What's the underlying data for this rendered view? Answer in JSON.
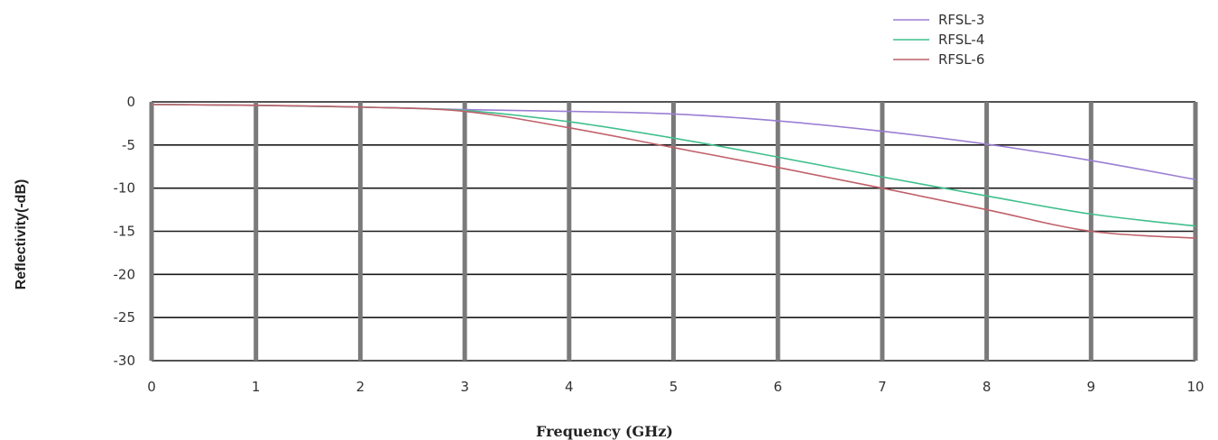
{
  "chart_data": {
    "type": "line",
    "title": "",
    "xlabel": "Frequency (GHz)",
    "ylabel": "Reflectivity(-dB)",
    "xlim": [
      0,
      10
    ],
    "ylim": [
      -30,
      0
    ],
    "x_ticks": [
      "0",
      "1",
      "2",
      "3",
      "4",
      "5",
      "6",
      "7",
      "8",
      "9",
      "10"
    ],
    "y_ticks": [
      "0",
      "-5",
      "-10",
      "-15",
      "-20",
      "-25",
      "-30"
    ],
    "grid": true,
    "legend_position": "top-right",
    "x": [
      0,
      1,
      2,
      3,
      4,
      5,
      6,
      7,
      8,
      9,
      10
    ],
    "series": [
      {
        "name": "RFSL-3",
        "color": "#9b7fd4",
        "values": [
          -0.3,
          -0.4,
          -0.6,
          -0.9,
          -1.1,
          -1.4,
          -2.2,
          -3.4,
          -4.9,
          -6.8,
          -9.0
        ]
      },
      {
        "name": "RFSL-4",
        "color": "#3fbf8c",
        "values": [
          -0.3,
          -0.4,
          -0.6,
          -1.0,
          -2.3,
          -4.2,
          -6.4,
          -8.7,
          -10.9,
          -13.0,
          -14.4
        ]
      },
      {
        "name": "RFSL-6",
        "color": "#c0606a",
        "values": [
          -0.3,
          -0.4,
          -0.6,
          -1.1,
          -3.0,
          -5.3,
          -7.6,
          -10.0,
          -12.5,
          -15.0,
          -15.8
        ]
      }
    ]
  }
}
